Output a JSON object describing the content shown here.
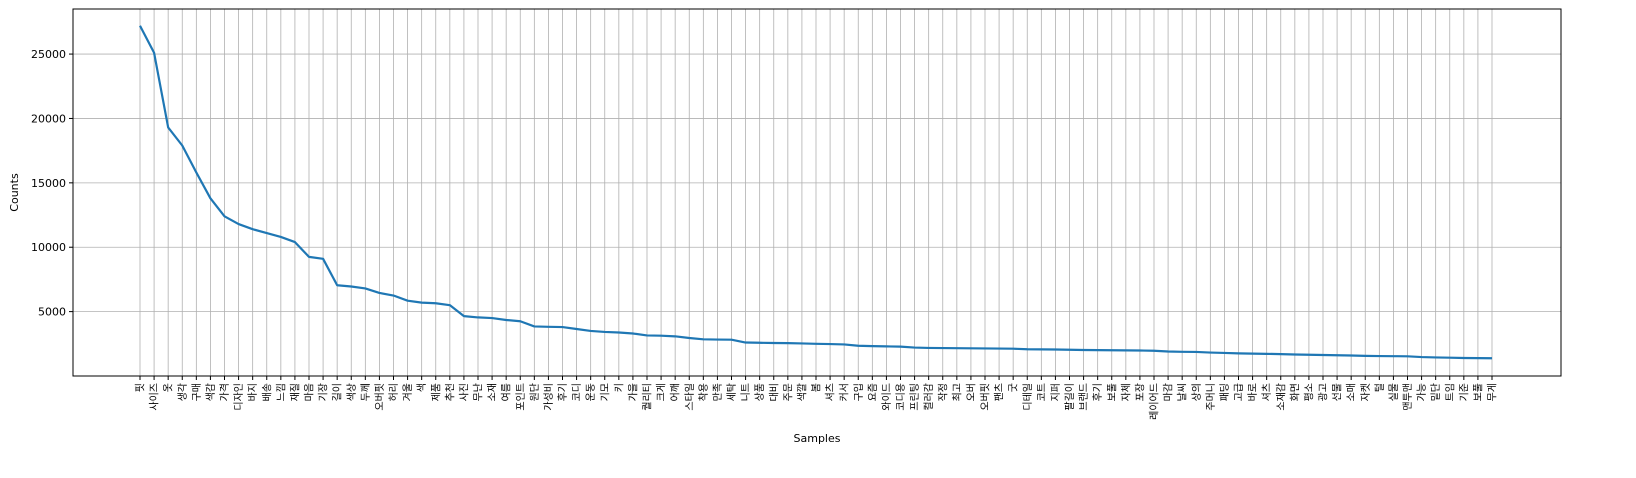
{
  "chart_data": {
    "type": "line",
    "xlabel": "Samples",
    "ylabel": "Counts",
    "grid": true,
    "ylim": [
      0,
      28500
    ],
    "yticks": [
      5000,
      10000,
      15000,
      20000,
      25000
    ],
    "series_color": "#1f77b4",
    "categories": [
      "핏",
      "사이즈",
      "옷",
      "생각",
      "구매",
      "색감",
      "가격",
      "디자인",
      "바지",
      "배송",
      "느낌",
      "재질",
      "마음",
      "기장",
      "길이",
      "색상",
      "두께",
      "오버핏",
      "허리",
      "겨울",
      "색",
      "제품",
      "추천",
      "사진",
      "무난",
      "소재",
      "여름",
      "포인트",
      "원단",
      "가성비",
      "후기",
      "코디",
      "운동",
      "기모",
      "키",
      "가을",
      "퀄리티",
      "크게",
      "어깨",
      "스타일",
      "착용",
      "만족",
      "세탁",
      "니트",
      "상품",
      "대비",
      "주문",
      "색깔",
      "봄",
      "셔츠",
      "커서",
      "구입",
      "요즘",
      "와이드",
      "코디용",
      "프린팅",
      "컬러감",
      "작정",
      "최고",
      "오버",
      "오버핏",
      "팬츠",
      "굿",
      "디테일",
      "코트",
      "지퍼",
      "팔길이",
      "브랜드",
      "후기",
      "보풀",
      "자체",
      "포장",
      "레이어드",
      "마감",
      "날씨",
      "상의",
      "주머니",
      "패딩",
      "고급",
      "바로",
      "셔츠",
      "소재감",
      "화면",
      "평소",
      "광고",
      "선물",
      "소매",
      "자켓",
      "털",
      "실물",
      "맨투맨",
      "가능",
      "밑단",
      "트임",
      "기준",
      "보풀",
      "무게"
    ],
    "values": [
      27200,
      25100,
      19300,
      17900,
      15800,
      13800,
      12400,
      11800,
      11400,
      11100,
      10800,
      10400,
      9250,
      9100,
      7050,
      6950,
      6800,
      6450,
      6250,
      5850,
      5700,
      5650,
      5500,
      4650,
      4550,
      4500,
      4350,
      4250,
      3850,
      3820,
      3800,
      3650,
      3500,
      3420,
      3380,
      3300,
      3150,
      3130,
      3080,
      2950,
      2850,
      2830,
      2820,
      2600,
      2580,
      2560,
      2550,
      2530,
      2500,
      2480,
      2450,
      2350,
      2320,
      2300,
      2280,
      2210,
      2180,
      2170,
      2160,
      2150,
      2140,
      2130,
      2120,
      2080,
      2070,
      2060,
      2040,
      2020,
      2010,
      2000,
      1990,
      1980,
      1960,
      1900,
      1880,
      1870,
      1820,
      1790,
      1760,
      1740,
      1720,
      1700,
      1670,
      1650,
      1630,
      1610,
      1590,
      1560,
      1550,
      1540,
      1530,
      1470,
      1440,
      1420,
      1400,
      1390,
      1380
    ]
  }
}
